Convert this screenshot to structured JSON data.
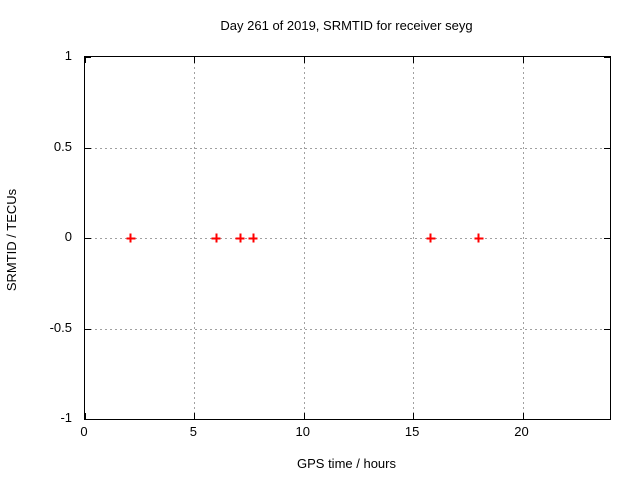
{
  "chart_data": {
    "type": "scatter",
    "title": "Day 261 of 2019, SRMTID for receiver seyg",
    "xlabel": "GPS time / hours",
    "ylabel": "SRMTID / TECUs",
    "xlim": [
      0,
      24
    ],
    "ylim": [
      -1,
      1
    ],
    "xticks": [
      0,
      5,
      10,
      15,
      20
    ],
    "xtick_labels": [
      "0",
      "5",
      "10",
      "15",
      "20"
    ],
    "yticks": [
      1,
      0.5,
      0,
      -0.5,
      -1
    ],
    "ytick_labels": [
      "1",
      "0.5",
      "0",
      "-0.5",
      "-1"
    ],
    "grid": true,
    "legend": "none",
    "series": [
      {
        "name": "SRMTID",
        "marker": "plus",
        "color": "#ff0000",
        "points": [
          {
            "x": 2.1,
            "y": 0
          },
          {
            "x": 6.0,
            "y": 0
          },
          {
            "x": 7.1,
            "y": 0
          },
          {
            "x": 7.7,
            "y": 0
          },
          {
            "x": 15.8,
            "y": 0
          },
          {
            "x": 18.0,
            "y": 0
          }
        ]
      }
    ]
  },
  "colors": {
    "background": "#ffffff",
    "text": "#000000",
    "axis_border": "#000000",
    "grid": "#a0a0a0",
    "marker": "#ff0000"
  }
}
